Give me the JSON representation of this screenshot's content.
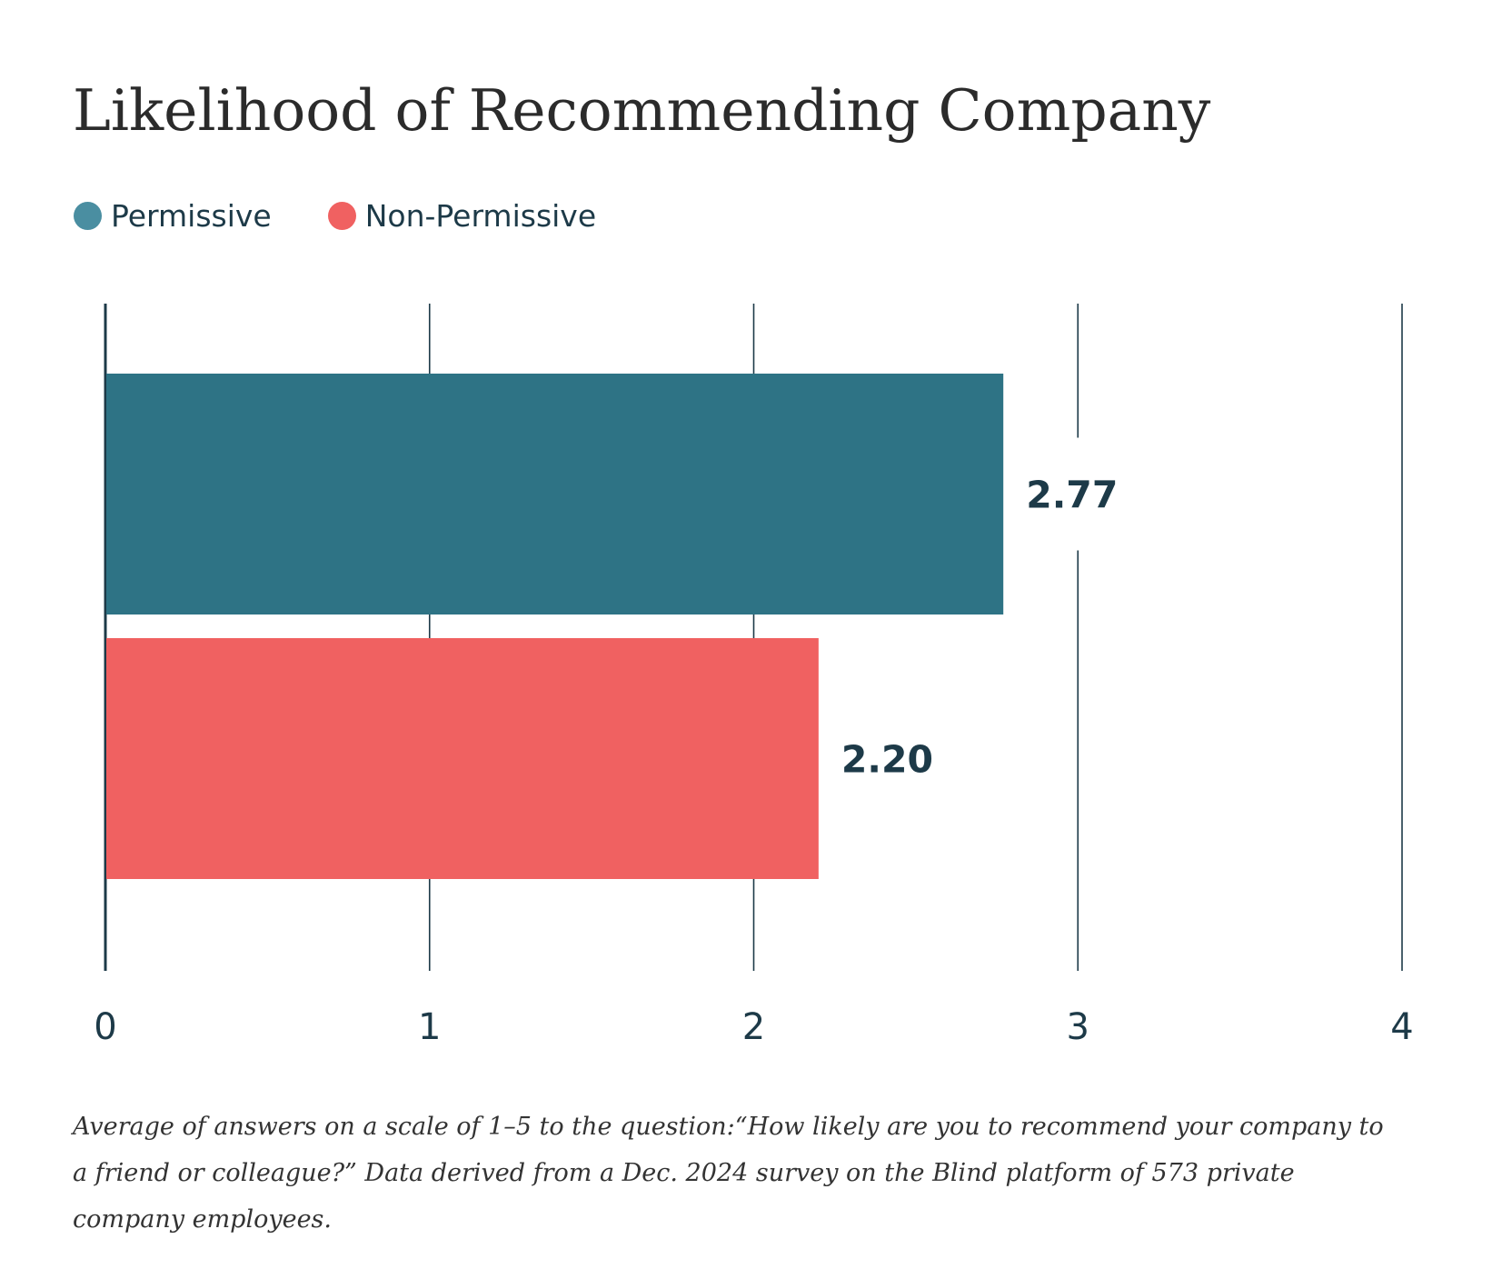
{
  "chart_data": {
    "type": "bar",
    "orientation": "horizontal",
    "title": "Likelihood of Recommending Company",
    "categories": [
      "Permissive",
      "Non-Permissive"
    ],
    "series": [
      {
        "name": "Permissive",
        "value": 2.77,
        "value_label": "2.77",
        "color": "#2e7385",
        "legend_color": "#4a8ea1"
      },
      {
        "name": "Non-Permissive",
        "value": 2.2,
        "value_label": "2.20",
        "color": "#f06161",
        "legend_color": "#f06161"
      }
    ],
    "xlim": [
      0,
      4
    ],
    "ticks": [
      {
        "value": 0,
        "label": "0"
      },
      {
        "value": 1,
        "label": "1"
      },
      {
        "value": 2,
        "label": "2"
      },
      {
        "value": 3,
        "label": "3"
      },
      {
        "value": 4,
        "label": "4"
      }
    ],
    "grid": true,
    "legend_position": "top-left",
    "xlabel": "",
    "ylabel": "",
    "gridline_color": "#1d3a48",
    "text_color": "#1d3a48"
  },
  "footnote": "Average of answers on a scale of 1–5 to the question:“How likely are you to recommend your company to a friend or colleague?” Data derived from a Dec. 2024 survey on the Blind platform of 573 private company employees."
}
